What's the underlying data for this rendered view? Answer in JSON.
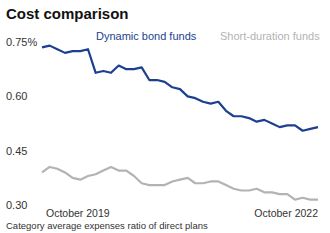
{
  "chart_data": {
    "type": "line",
    "title": "Cost comparison",
    "caption": "Category average expenses ratio of direct plans",
    "categories": [
      "October 2019",
      null,
      null,
      null,
      null,
      null,
      null,
      null,
      null,
      null,
      null,
      null,
      null,
      null,
      null,
      null,
      null,
      null,
      null,
      null,
      null,
      null,
      null,
      null,
      null,
      null,
      null,
      null,
      null,
      null,
      null,
      null,
      null,
      null,
      null,
      null,
      "October 2022"
    ],
    "series": [
      {
        "name": "Dynamic bond funds",
        "color": "#1d3f8f",
        "values": [
          0.735,
          0.74,
          0.73,
          0.72,
          0.725,
          0.725,
          0.73,
          0.665,
          0.67,
          0.665,
          0.685,
          0.675,
          0.675,
          0.68,
          0.645,
          0.645,
          0.64,
          0.625,
          0.62,
          0.6,
          0.595,
          0.585,
          0.58,
          0.585,
          0.56,
          0.545,
          0.545,
          0.54,
          0.53,
          0.535,
          0.525,
          0.515,
          0.52,
          0.52,
          0.505,
          0.51,
          0.515
        ]
      },
      {
        "name": "Short-duration funds",
        "color": "#b3b3b3",
        "values": [
          0.39,
          0.405,
          0.4,
          0.39,
          0.375,
          0.37,
          0.38,
          0.385,
          0.395,
          0.405,
          0.395,
          0.395,
          0.38,
          0.36,
          0.355,
          0.355,
          0.355,
          0.365,
          0.37,
          0.375,
          0.36,
          0.36,
          0.365,
          0.365,
          0.355,
          0.345,
          0.34,
          0.34,
          0.345,
          0.335,
          0.335,
          0.33,
          0.33,
          0.315,
          0.32,
          0.315,
          0.315
        ]
      }
    ],
    "ylim": [
      0.3,
      0.75
    ],
    "yticks": [
      {
        "value": 0.75,
        "label": "0.75%"
      },
      {
        "value": 0.6,
        "label": "0.60"
      },
      {
        "value": 0.45,
        "label": "0.45"
      },
      {
        "value": 0.3,
        "label": "0.30"
      }
    ],
    "legend": "top",
    "grid": false
  }
}
